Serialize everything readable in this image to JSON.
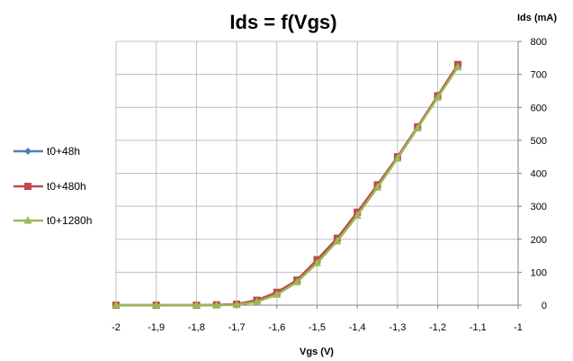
{
  "chart_data": {
    "type": "line",
    "title": "Ids = f(Vgs)",
    "xlabel": "Vgs (V)",
    "ylabel": "Ids (mA)",
    "xlim": [
      -2,
      -1
    ],
    "ylim": [
      0,
      800
    ],
    "x_ticks": [
      "-2",
      "-1,9",
      "-1,8",
      "-1,7",
      "-1,6",
      "-1,5",
      "-1,4",
      "-1,3",
      "-1,2",
      "-1,1",
      "-1"
    ],
    "y_ticks": [
      "0",
      "100",
      "200",
      "300",
      "400",
      "500",
      "600",
      "700",
      "800"
    ],
    "x": [
      -2.0,
      -1.9,
      -1.8,
      -1.75,
      -1.7,
      -1.65,
      -1.6,
      -1.55,
      -1.5,
      -1.45,
      -1.4,
      -1.35,
      -1.3,
      -1.25,
      -1.2,
      -1.15
    ],
    "series": [
      {
        "name": "t0+48h",
        "color": "#4a7ebb",
        "marker": "diamond",
        "values": [
          0,
          0,
          0,
          0,
          2,
          12,
          35,
          73,
          132,
          198,
          275,
          360,
          448,
          540,
          634,
          728
        ]
      },
      {
        "name": "t0+480h",
        "color": "#be4b48",
        "marker": "square",
        "values": [
          0,
          0,
          0,
          1,
          3,
          15,
          39,
          76,
          138,
          203,
          282,
          365,
          450,
          541,
          635,
          730
        ]
      },
      {
        "name": "t0+1280h",
        "color": "#98b954",
        "marker": "triangle",
        "values": [
          0,
          0,
          0,
          0,
          1,
          10,
          32,
          70,
          128,
          194,
          272,
          357,
          445,
          537,
          630,
          722
        ]
      }
    ],
    "grid": true,
    "legend_position": "left",
    "y_axis_side": "right"
  }
}
